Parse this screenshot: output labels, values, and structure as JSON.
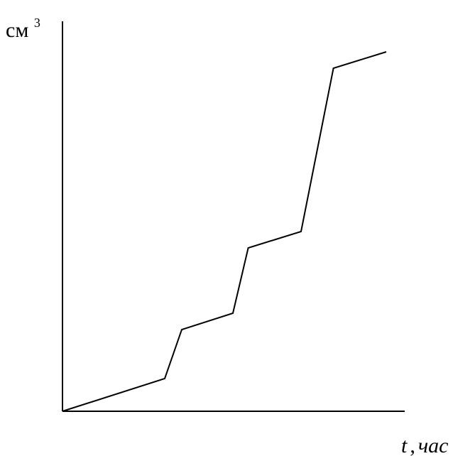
{
  "chart_data": {
    "type": "line",
    "ylabel": {
      "base": "см",
      "superscript": "3"
    },
    "xlabel": {
      "variable": "t",
      "separator": ",",
      "unit": "час"
    },
    "series": [
      {
        "x": [
          0,
          3.0,
          3.5,
          5.0,
          5.45,
          7.0,
          7.95,
          9.5
        ],
        "y": [
          0,
          1.0,
          2.5,
          3.0,
          5.0,
          5.5,
          10.5,
          11.0
        ]
      }
    ],
    "xlim": [
      0,
      10
    ],
    "ylim": [
      0,
      12
    ],
    "grid": false,
    "legend": "none",
    "colors": {
      "line": "#000000",
      "axes": "#000000"
    }
  }
}
